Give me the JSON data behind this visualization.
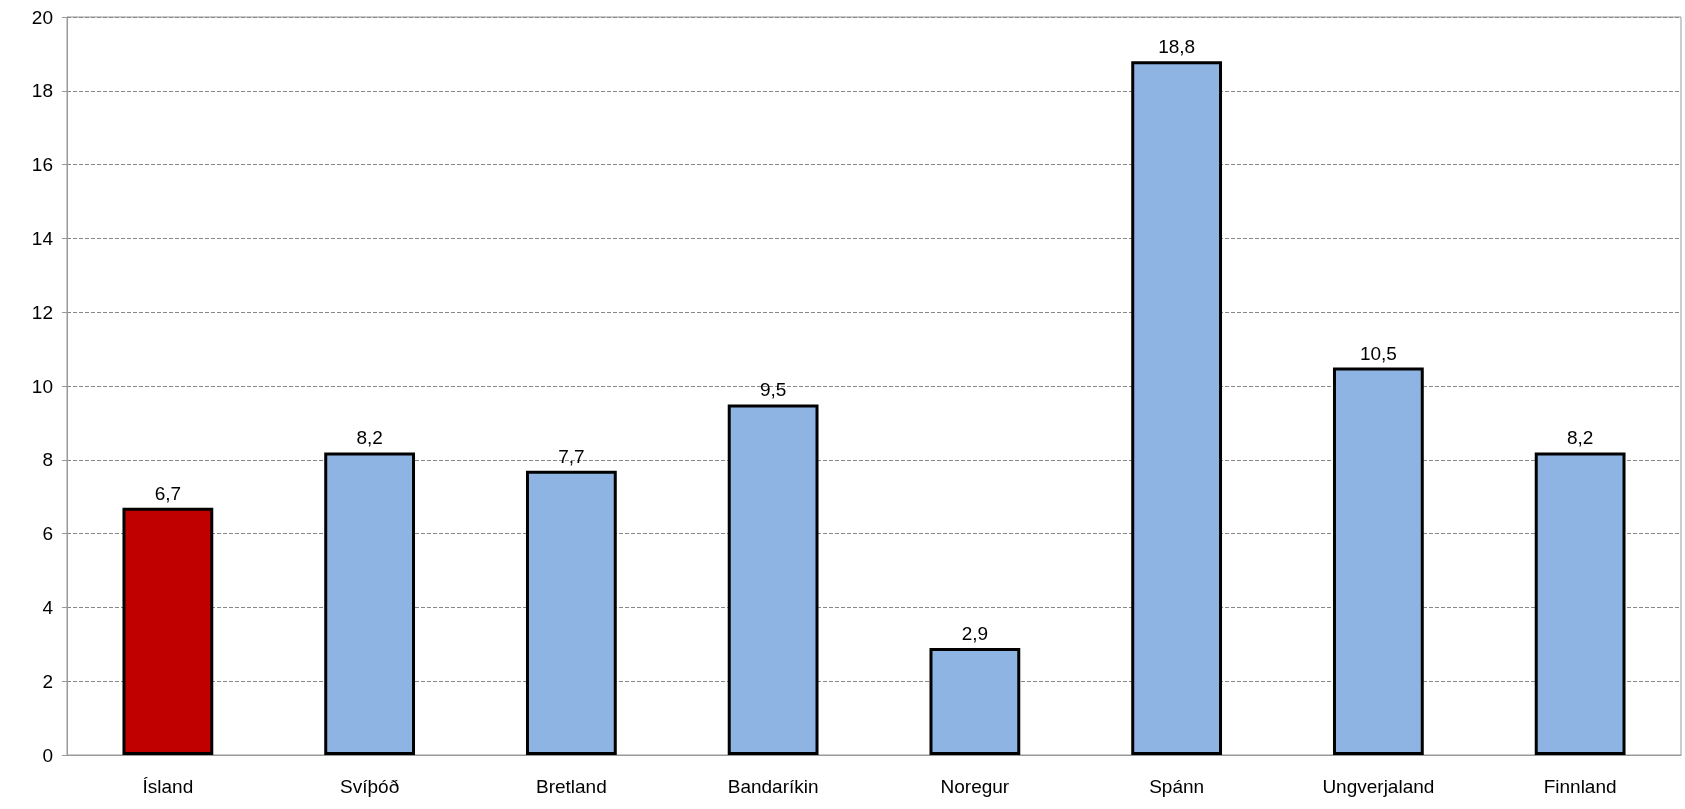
{
  "chart_data": {
    "type": "bar",
    "categories": [
      "Ísland",
      "Svíþóð",
      "Bretland",
      "Bandaríkin",
      "Noregur",
      "Spánn",
      "Ungverjaland",
      "Finnland"
    ],
    "values": [
      6.7,
      8.2,
      7.7,
      9.5,
      2.9,
      18.8,
      10.5,
      8.2
    ],
    "colors": [
      "#c00000",
      "#8eb4e3",
      "#8eb4e3",
      "#8eb4e3",
      "#8eb4e3",
      "#8eb4e3",
      "#8eb4e3",
      "#8eb4e3"
    ],
    "value_labels": [
      "6,7",
      "8,2",
      "7,7",
      "9,5",
      "2,9",
      "18,8",
      "10,5",
      "8,2"
    ],
    "ylim": [
      0,
      20
    ],
    "yticks": [
      0,
      2,
      4,
      6,
      8,
      10,
      12,
      14,
      16,
      18,
      20
    ],
    "grid": "y"
  }
}
